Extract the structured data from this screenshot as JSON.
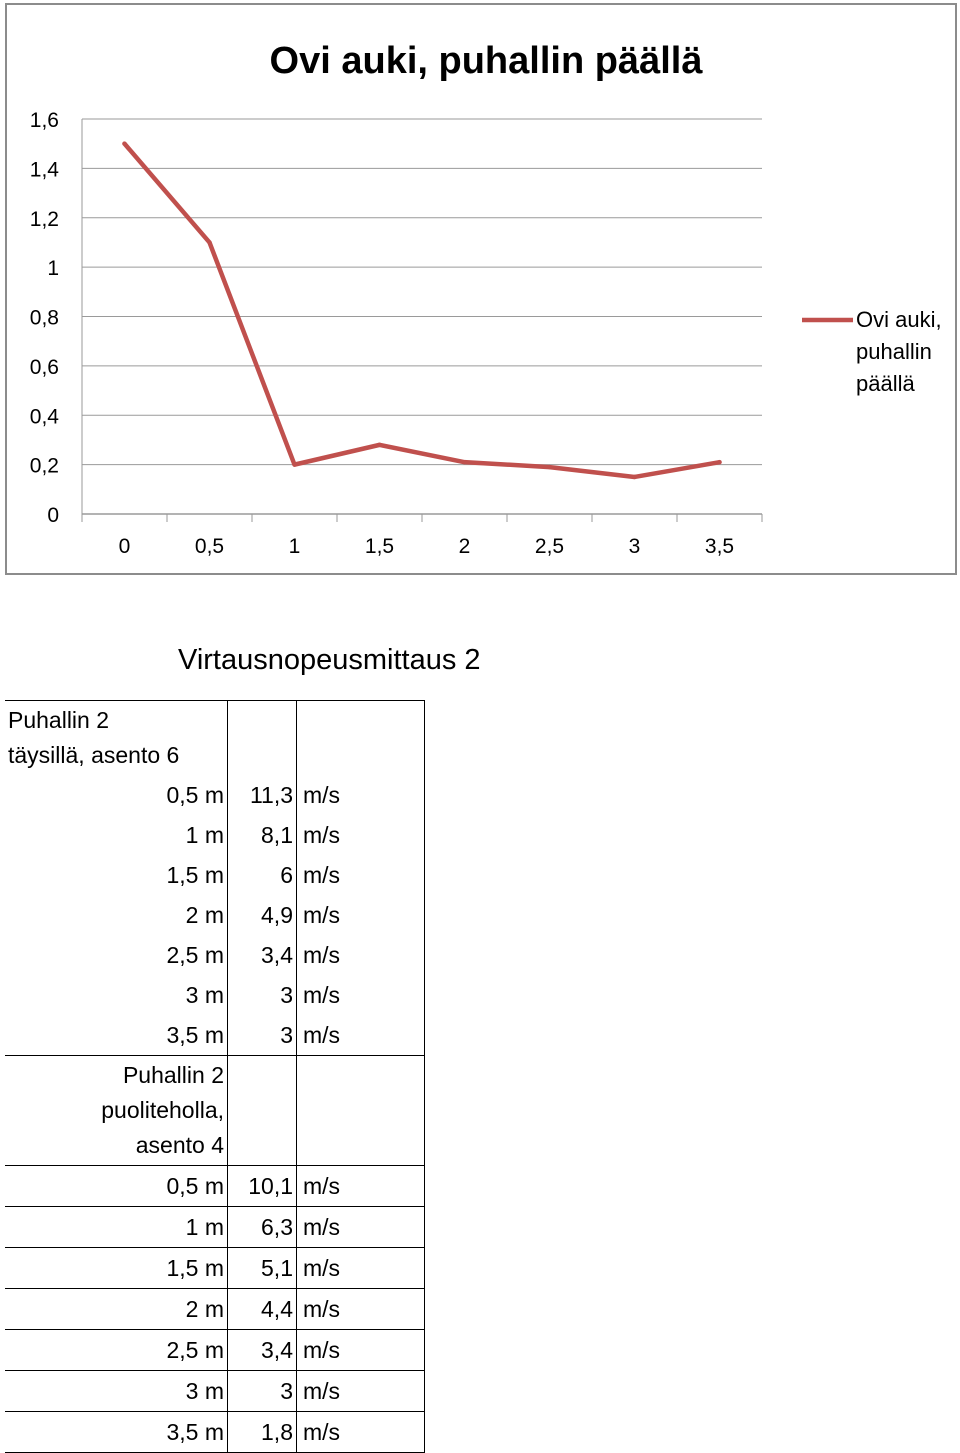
{
  "chart_data": {
    "type": "line",
    "title": "Ovi auki, puhallin päällä",
    "categories": [
      "0",
      "0,5",
      "1",
      "1,5",
      "2",
      "2,5",
      "3",
      "3,5"
    ],
    "series": [
      {
        "name": "Ovi auki, puhallin päällä",
        "values": [
          1.5,
          1.1,
          0.2,
          0.28,
          0.21,
          0.19,
          0.15,
          0.21
        ],
        "color": "#c0504d"
      }
    ],
    "yticks": [
      "0",
      "0,2",
      "0,4",
      "0,6",
      "0,8",
      "1",
      "1,2",
      "1,4",
      "1,6"
    ],
    "ylim": [
      0,
      1.6
    ],
    "grid": true,
    "legend_position": "right",
    "legend_lines": [
      "Ovi auki,",
      "puhallin",
      "päällä"
    ]
  },
  "table_heading": "Virtausnopeusmittaus 2",
  "groups": [
    {
      "title_lines": [
        "Puhallin 2",
        "täysillä, asento 6"
      ],
      "rows": [
        {
          "distance": "0,5 m",
          "value": "11,3",
          "unit": "m/s"
        },
        {
          "distance": "1 m",
          "value": "8,1",
          "unit": "m/s"
        },
        {
          "distance": "1,5 m",
          "value": "6",
          "unit": "m/s"
        },
        {
          "distance": "2 m",
          "value": "4,9",
          "unit": "m/s"
        },
        {
          "distance": "2,5 m",
          "value": "3,4",
          "unit": "m/s"
        },
        {
          "distance": "3 m",
          "value": "3",
          "unit": "m/s"
        },
        {
          "distance": "3,5 m",
          "value": "3",
          "unit": "m/s"
        }
      ]
    },
    {
      "title_lines": [
        "Puhallin 2",
        "puoliteholla,",
        "asento 4"
      ],
      "rows": [
        {
          "distance": "0,5 m",
          "value": "10,1",
          "unit": "m/s"
        },
        {
          "distance": "1 m",
          "value": "6,3",
          "unit": "m/s"
        },
        {
          "distance": "1,5 m",
          "value": "5,1",
          "unit": "m/s"
        },
        {
          "distance": "2 m",
          "value": "4,4",
          "unit": "m/s"
        },
        {
          "distance": "2,5 m",
          "value": "3,4",
          "unit": "m/s"
        },
        {
          "distance": "3 m",
          "value": "3",
          "unit": "m/s"
        },
        {
          "distance": "3,5 m",
          "value": "1,8",
          "unit": "m/s"
        }
      ]
    }
  ]
}
